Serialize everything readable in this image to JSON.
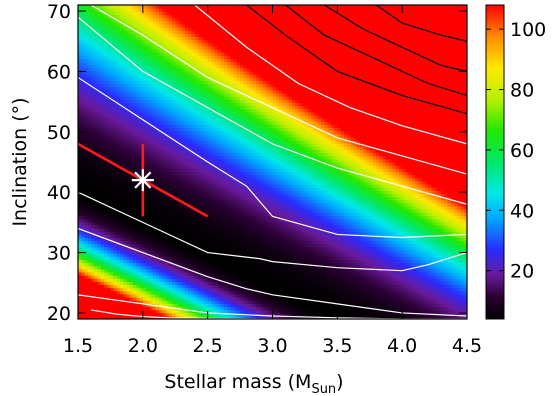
{
  "chart_data": {
    "type": "heatmap",
    "title": "",
    "xlabel": "Stellar mass (M",
    "xlabel_sub": "Sun",
    "xlabel_close": ")",
    "ylabel": "Inclination (°)",
    "xlim": [
      1.5,
      4.5
    ],
    "ylim": [
      19,
      71
    ],
    "x_ticks": [
      1.5,
      2.0,
      2.5,
      3.0,
      3.5,
      4.0,
      4.5
    ],
    "x_tick_labels": [
      "1.5",
      "2.0",
      "2.5",
      "3.0",
      "3.5",
      "4.0",
      "4.5"
    ],
    "y_ticks": [
      20,
      30,
      40,
      50,
      60,
      70
    ],
    "y_tick_labels": [
      "20",
      "30",
      "40",
      "50",
      "60",
      "70"
    ],
    "colorbar": {
      "range": [
        4,
        108
      ],
      "ticks": [
        20,
        40,
        60,
        80,
        100
      ],
      "tick_labels": [
        "20",
        "40",
        "60",
        "80",
        "100"
      ],
      "colormap": "rainbow"
    },
    "best_fit": {
      "mass": 2.0,
      "inclination": 42
    },
    "correlation_line": {
      "x": [
        1.5,
        2.5
      ],
      "y": [
        48,
        36
      ]
    },
    "error_bar": {
      "mass": 2.0,
      "inclination_range": [
        36,
        48
      ]
    },
    "contours": {
      "white": [
        {
          "x": [
            1.5,
            2.0,
            2.5,
            2.8,
            3.0,
            3.5,
            4.0,
            4.5
          ],
          "y": [
            34,
            30,
            26,
            24,
            23,
            21.5,
            20,
            19.5
          ]
        },
        {
          "x": [
            1.5,
            2.0,
            2.5,
            3.0,
            3.5,
            4.0,
            4.5
          ],
          "y": [
            23,
            21.5,
            20,
            19.5,
            19.2,
            19,
            19
          ]
        },
        {
          "x": [
            1.6,
            1.8,
            2.0,
            2.2,
            2.5,
            3.0,
            3.5,
            4.0,
            4.5
          ],
          "y": [
            20.5,
            19.8,
            19.4,
            19.2,
            19.1,
            19,
            19,
            19,
            19
          ]
        },
        {
          "x": [
            1.5,
            2.0,
            2.5,
            2.9,
            3.0,
            3.5,
            4.0,
            4.2,
            4.5
          ],
          "y": [
            40,
            35,
            30,
            29,
            28.5,
            27.5,
            27,
            28,
            30
          ]
        },
        {
          "x": [
            1.5,
            2.0,
            2.5,
            2.8,
            3.0,
            3.5,
            4.0,
            4.5
          ],
          "y": [
            59,
            52,
            45,
            41,
            36,
            33,
            32.5,
            33
          ]
        },
        {
          "x": [
            1.5,
            2.0,
            2.5,
            3.0,
            3.5,
            4.0,
            4.5
          ],
          "y": [
            69,
            60,
            54,
            48,
            44,
            41,
            38
          ]
        },
        {
          "x": [
            1.6,
            2.0,
            2.5,
            3.0,
            3.5,
            4.0,
            4.5
          ],
          "y": [
            71,
            66,
            59,
            54,
            49,
            46,
            43
          ]
        },
        {
          "x": [
            2.4,
            2.8,
            3.2,
            3.6,
            4.0,
            4.5
          ],
          "y": [
            71,
            64,
            58,
            54,
            51,
            48
          ]
        }
      ],
      "black": [
        {
          "x": [
            2.8,
            3.1,
            3.5,
            4.0,
            4.5
          ],
          "y": [
            71,
            66,
            60,
            56,
            53
          ]
        },
        {
          "x": [
            3.1,
            3.4,
            3.8,
            4.2,
            4.5
          ],
          "y": [
            71,
            66,
            62,
            58,
            56
          ]
        },
        {
          "x": [
            3.4,
            3.7,
            4.0,
            4.3,
            4.5
          ],
          "y": [
            71,
            67,
            64,
            61,
            60
          ]
        },
        {
          "x": [
            3.8,
            4.0,
            4.3,
            4.5
          ],
          "y": [
            71,
            68,
            66,
            65
          ]
        }
      ]
    }
  }
}
